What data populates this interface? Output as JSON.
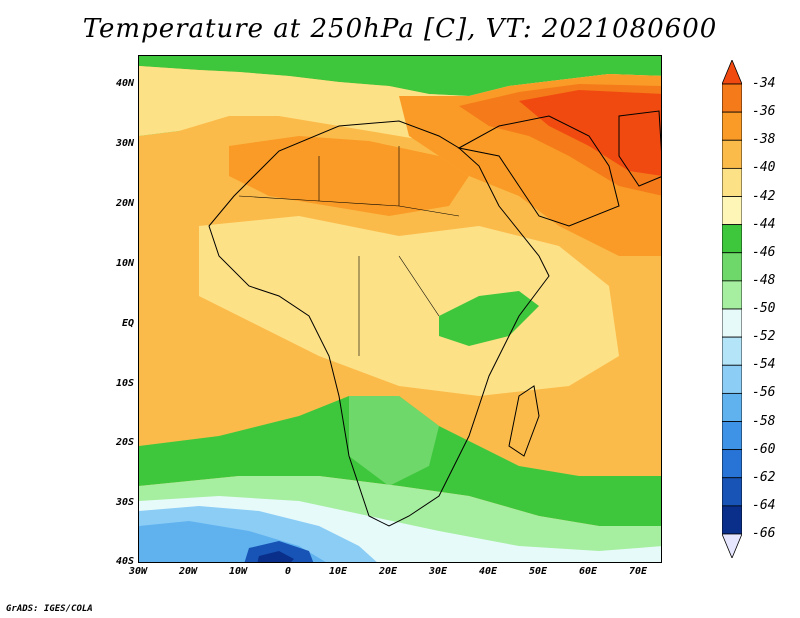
{
  "title": "Temperature at 250hPa [C], VT: 2021080600",
  "credit": "GrADS: IGES/COLA",
  "lat_labels": [
    "40N",
    "30N",
    "20N",
    "10N",
    "EQ",
    "10S",
    "20S",
    "30S",
    "40S"
  ],
  "lon_labels": [
    "30W",
    "20W",
    "10W",
    "0",
    "10E",
    "20E",
    "30E",
    "40E",
    "50E",
    "60E",
    "70E"
  ],
  "colorbar": {
    "labels": [
      "-34",
      "-36",
      "-38",
      "-40",
      "-42",
      "-44",
      "-46",
      "-48",
      "-50",
      "-52",
      "-54",
      "-56",
      "-58",
      "-60",
      "-62",
      "-64",
      "-66"
    ],
    "colors": [
      "#f04a10",
      "#f57a1a",
      "#f99b26",
      "#fbbb4a",
      "#fde187",
      "#fdf6b6",
      "#3ec73d",
      "#6fd86a",
      "#a6eea0",
      "#e6fafa",
      "#b4e4f8",
      "#8ccdf5",
      "#60b2ef",
      "#3f93e6",
      "#2874d6",
      "#1754b6",
      "#0a2f8a",
      "#08186a"
    ]
  }
}
